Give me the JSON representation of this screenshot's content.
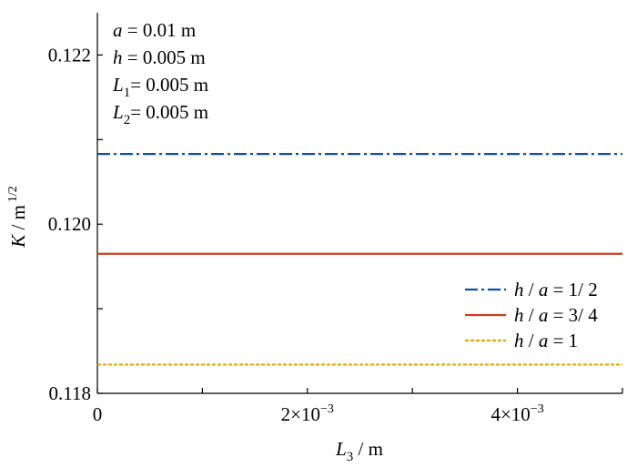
{
  "chart_data": {
    "type": "line",
    "xlabel": {
      "var": "L",
      "sub": "3",
      "unit": " / m"
    },
    "ylabel": {
      "var": "K",
      "unit": " / m",
      "sup": "1/2"
    },
    "xlim": [
      0,
      0.005
    ],
    "ylim": [
      0.118,
      0.1225
    ],
    "x_ticks": [
      0,
      0.001,
      0.002,
      0.003,
      0.004,
      0.005
    ],
    "x_tick_labels": [
      {
        "value": 0,
        "mant": "0",
        "exp": ""
      },
      {
        "value": 0.002,
        "mant": "2×10",
        "exp": "−3"
      },
      {
        "value": 0.004,
        "mant": "4×10",
        "exp": "−3"
      }
    ],
    "y_ticks": [
      0.118,
      0.119,
      0.12,
      0.121,
      0.122
    ],
    "y_tick_labels": [
      {
        "value": 0.118,
        "text": "0.118"
      },
      {
        "value": 0.12,
        "text": "0.120"
      },
      {
        "value": 0.122,
        "text": "0.122"
      }
    ],
    "annotations": [
      {
        "var": "a",
        "sub": "",
        "rest": " = 0.01 m"
      },
      {
        "var": "h",
        "sub": "",
        "rest": " = 0.005 m"
      },
      {
        "var": "L",
        "sub": "1",
        "rest": "= 0.005 m"
      },
      {
        "var": "L",
        "sub": "2",
        "rest": "= 0.005 m"
      }
    ],
    "legend_position": "right",
    "series": [
      {
        "name": "h / a = 1/ 2",
        "label_parts": [
          "h",
          " / ",
          "a",
          " = 1/ 2"
        ],
        "color": "#0e4fa0",
        "dash": "14 4 3 4",
        "x": [
          0,
          0.005
        ],
        "y": [
          0.12083,
          0.12083
        ]
      },
      {
        "name": "h / a = 3/ 4",
        "label_parts": [
          "h",
          " / ",
          "a",
          " = 3/ 4"
        ],
        "color": "#c8401b",
        "dash": "",
        "x": [
          0,
          0.005
        ],
        "y": [
          0.11965,
          0.11965
        ]
      },
      {
        "name": "h / a = 1",
        "label_parts": [
          "h",
          " / ",
          "a",
          " = 1"
        ],
        "color": "#e5a800",
        "dash": "4 2",
        "x": [
          0,
          0.005
        ],
        "y": [
          0.11834,
          0.11834
        ]
      }
    ],
    "grid": false
  }
}
